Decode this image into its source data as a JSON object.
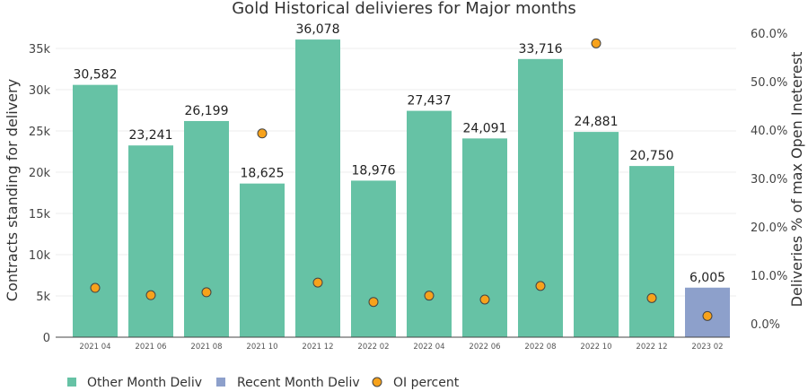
{
  "chart_data": {
    "type": "bar",
    "title": "Gold Historical delivieres for Major months",
    "xlabel": "",
    "ylabel": "Contracts standing for delivery",
    "y2label": "Deliveries % of max Open Ineterest",
    "ylim": [
      0,
      35000
    ],
    "y2lim": [
      0,
      60
    ],
    "grid": true,
    "legend_position": "bottom-left",
    "categories": [
      "2021 04",
      "2021 06",
      "2021 08",
      "2021 10",
      "2021 12",
      "2022 02",
      "2022 04",
      "2022 06",
      "2022 08",
      "2022 10",
      "2022 12",
      "2023 02"
    ],
    "y_ticks": [
      0,
      5000,
      10000,
      15000,
      20000,
      25000,
      30000,
      35000
    ],
    "y_tick_labels": [
      "0",
      "5k",
      "10k",
      "15k",
      "20k",
      "25k",
      "30k",
      "35k"
    ],
    "y2_ticks": [
      0,
      10,
      20,
      30,
      40,
      50,
      60
    ],
    "y2_tick_labels": [
      "0.0%",
      "10.0%",
      "20.0%",
      "30.0%",
      "40.0%",
      "50.0%",
      "60.0%"
    ],
    "series": [
      {
        "name": "Other Month Deliv",
        "type": "bar",
        "axis": "left",
        "color": "#66c2a5",
        "values": [
          30582,
          23241,
          26199,
          18625,
          36078,
          18976,
          27437,
          24091,
          33716,
          24881,
          20750,
          null
        ],
        "labels": [
          "30,582",
          "23,241",
          "26,199",
          "18,625",
          "36,078",
          "18,976",
          "27,437",
          "24,091",
          "33,716",
          "24,881",
          "20,750",
          null
        ]
      },
      {
        "name": "Recent Month Deliv",
        "type": "bar",
        "axis": "left",
        "color": "#8da0cb",
        "values": [
          null,
          null,
          null,
          null,
          null,
          null,
          null,
          null,
          null,
          null,
          null,
          6005
        ],
        "labels": [
          null,
          null,
          null,
          null,
          null,
          null,
          null,
          null,
          null,
          null,
          null,
          "6,005"
        ]
      },
      {
        "name": "OI percent",
        "type": "scatter",
        "axis": "right",
        "color": "#f7a21b",
        "values": [
          7.4,
          5.9,
          6.5,
          39.3,
          8.5,
          4.5,
          5.8,
          5.0,
          7.8,
          57.9,
          5.3,
          1.6
        ]
      }
    ]
  }
}
